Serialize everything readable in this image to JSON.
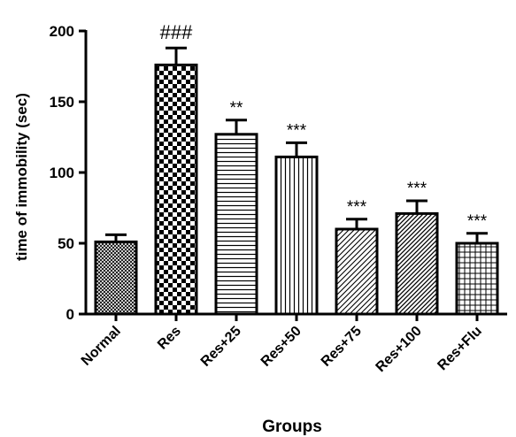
{
  "chart_data": {
    "type": "bar",
    "title": "",
    "xlabel": "Groups",
    "ylabel": "time of immobility (sec)",
    "ylim": [
      0,
      200
    ],
    "yticks": [
      0,
      50,
      100,
      150,
      200
    ],
    "categories": [
      "Normal",
      "Res",
      "Res+25",
      "Res+50",
      "Res+75",
      "Res+100",
      "Res+Flu"
    ],
    "values": [
      51,
      176,
      127,
      111,
      60,
      71,
      50
    ],
    "errors": [
      5,
      12,
      10,
      10,
      7,
      9,
      7
    ],
    "annotations": [
      "",
      "###",
      "**",
      "***",
      "***",
      "***",
      "***"
    ],
    "patterns": [
      "dense-diamond",
      "checker",
      "horizontal",
      "vertical",
      "diagonal",
      "diagonal-dense",
      "grid"
    ],
    "bar_color": "#000000",
    "grid": false,
    "legend": "none"
  }
}
